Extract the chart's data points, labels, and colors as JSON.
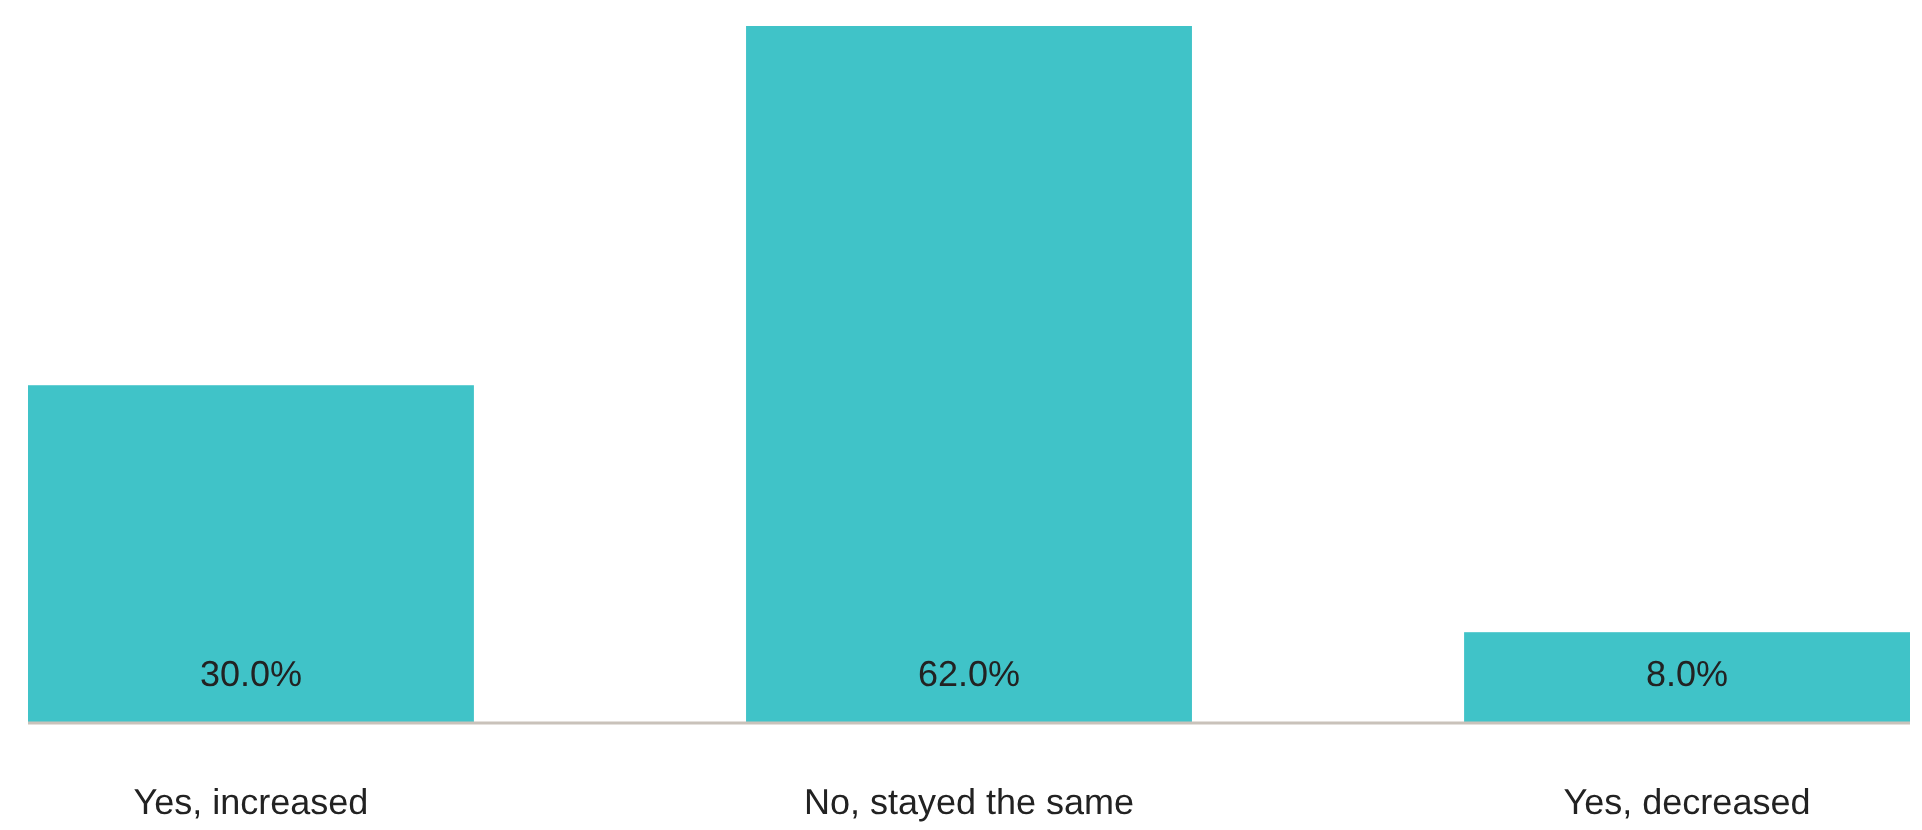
{
  "chart_data": {
    "type": "bar",
    "categories": [
      "Yes, increased",
      "No, stayed the same",
      "Yes, decreased"
    ],
    "values": [
      30,
      62,
      8
    ],
    "value_labels": [
      "30.0%",
      "62.0%",
      "8.0%"
    ],
    "color": "#40c3c8"
  }
}
